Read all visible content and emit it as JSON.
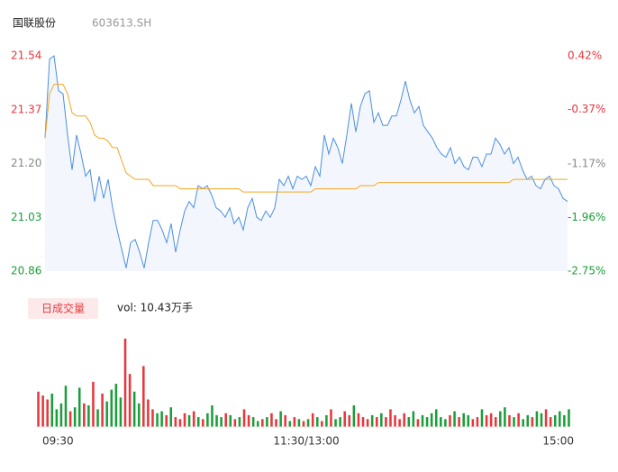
{
  "header": {
    "name": "国联股份",
    "code": "603613.SH"
  },
  "volume_button": "日成交量",
  "vol_label": "vol: 10.43万手",
  "chart_data": [
    {
      "type": "line",
      "ylim": [
        20.86,
        21.54
      ],
      "yticks": [
        {
          "value": 21.54,
          "label": "21.54"
        },
        {
          "value": 21.37,
          "label": "21.37"
        },
        {
          "value": 21.2,
          "label": "21.20"
        },
        {
          "value": 21.03,
          "label": "21.03"
        },
        {
          "value": 20.86,
          "label": "20.86"
        }
      ],
      "ytick_colors": [
        "#e8363c",
        "#e8363c",
        "#888888",
        "#1a9e3a",
        "#1a9e3a"
      ],
      "y2lim": [
        -2.75,
        0.42
      ],
      "y2ticks": [
        {
          "value": 0.42,
          "label": "0.42%"
        },
        {
          "value": -0.37,
          "label": "-0.37%"
        },
        {
          "value": -1.17,
          "label": "-1.17%"
        },
        {
          "value": -1.96,
          "label": "-1.96%"
        },
        {
          "value": -2.75,
          "label": "-2.75%"
        }
      ],
      "y2tick_colors": [
        "#e8363c",
        "#e8363c",
        "#888888",
        "#1a9e3a",
        "#1a9e3a"
      ],
      "area_fill": "#f3f7fd",
      "series": [
        {
          "color": "#4a8fe0",
          "values": [
            21.28,
            21.53,
            21.54,
            21.43,
            21.42,
            21.29,
            21.18,
            21.29,
            21.23,
            21.16,
            21.18,
            21.08,
            21.16,
            21.09,
            21.15,
            21.06,
            20.99,
            20.93,
            20.87,
            20.95,
            20.96,
            20.92,
            20.87,
            20.95,
            21.02,
            21.02,
            20.99,
            20.95,
            21.01,
            20.92,
            20.99,
            21.05,
            21.08,
            21.06,
            21.13,
            21.12,
            21.13,
            21.1,
            21.06,
            21.05,
            21.03,
            21.06,
            21.01,
            21.03,
            20.99,
            21.06,
            21.09,
            21.03,
            21.02,
            21.05,
            21.03,
            21.06,
            21.15,
            21.13,
            21.16,
            21.12,
            21.16,
            21.15,
            21.16,
            21.13,
            21.19,
            21.16,
            21.29,
            21.23,
            21.28,
            21.25,
            21.2,
            21.29,
            21.39,
            21.3,
            21.38,
            21.42,
            21.43,
            21.33,
            21.36,
            21.32,
            21.32,
            21.35,
            21.35,
            21.4,
            21.46,
            21.4,
            21.36,
            21.38,
            21.32,
            21.3,
            21.28,
            21.25,
            21.23,
            21.22,
            21.25,
            21.2,
            21.22,
            21.19,
            21.18,
            21.22,
            21.22,
            21.19,
            21.23,
            21.23,
            21.28,
            21.26,
            21.23,
            21.25,
            21.2,
            21.22,
            21.18,
            21.15,
            21.16,
            21.13,
            21.12,
            21.15,
            21.16,
            21.13,
            21.12,
            21.09,
            21.08
          ]
        },
        {
          "color": "#f5a623",
          "values": [
            21.28,
            21.42,
            21.45,
            21.45,
            21.45,
            21.42,
            21.36,
            21.35,
            21.35,
            21.35,
            21.33,
            21.29,
            21.28,
            21.28,
            21.27,
            21.25,
            21.25,
            21.21,
            21.17,
            21.16,
            21.15,
            21.15,
            21.15,
            21.15,
            21.13,
            21.13,
            21.13,
            21.13,
            21.13,
            21.13,
            21.12,
            21.12,
            21.12,
            21.12,
            21.12,
            21.12,
            21.12,
            21.12,
            21.12,
            21.12,
            21.12,
            21.12,
            21.12,
            21.12,
            21.11,
            21.11,
            21.11,
            21.11,
            21.11,
            21.11,
            21.11,
            21.11,
            21.11,
            21.11,
            21.11,
            21.11,
            21.11,
            21.11,
            21.11,
            21.11,
            21.12,
            21.12,
            21.12,
            21.12,
            21.12,
            21.12,
            21.12,
            21.12,
            21.12,
            21.12,
            21.13,
            21.13,
            21.13,
            21.13,
            21.14,
            21.14,
            21.14,
            21.14,
            21.14,
            21.14,
            21.14,
            21.14,
            21.14,
            21.14,
            21.14,
            21.14,
            21.14,
            21.14,
            21.14,
            21.14,
            21.14,
            21.14,
            21.14,
            21.14,
            21.14,
            21.14,
            21.14,
            21.14,
            21.14,
            21.14,
            21.14,
            21.14,
            21.14,
            21.14,
            21.15,
            21.15,
            21.15,
            21.15,
            21.15,
            21.15,
            21.15,
            21.15,
            21.15,
            21.15,
            21.15,
            21.15,
            21.15
          ]
        }
      ]
    },
    {
      "type": "bar",
      "ylim": [
        0,
        5000
      ],
      "up_color": "#e8363c",
      "down_color": "#1a9e3a",
      "xlabels": [
        "09:30",
        "11:30/13:00",
        "15:00"
      ],
      "values": [
        1800,
        1600,
        1400,
        1700,
        900,
        1200,
        2100,
        800,
        1000,
        2000,
        1200,
        1100,
        2300,
        900,
        1700,
        1300,
        1900,
        2200,
        1500,
        4500,
        2700,
        1800,
        1200,
        3100,
        1400,
        900,
        700,
        800,
        600,
        1000,
        500,
        400,
        700,
        600,
        800,
        500,
        400,
        700,
        1100,
        600,
        500,
        700,
        600,
        400,
        500,
        900,
        600,
        500,
        300,
        400,
        500,
        700,
        400,
        800,
        600,
        300,
        500,
        400,
        300,
        400,
        700,
        500,
        300,
        600,
        900,
        400,
        500,
        800,
        600,
        1100,
        700,
        500,
        400,
        600,
        500,
        700,
        500,
        900,
        600,
        400,
        700,
        500,
        800,
        400,
        600,
        500,
        700,
        900,
        500,
        400,
        600,
        800,
        500,
        700,
        600,
        400,
        500,
        900,
        600,
        700,
        500,
        800,
        1000,
        600,
        500,
        700,
        400,
        600,
        500,
        800,
        700,
        900,
        500,
        600,
        800,
        600,
        900
      ]
    }
  ]
}
